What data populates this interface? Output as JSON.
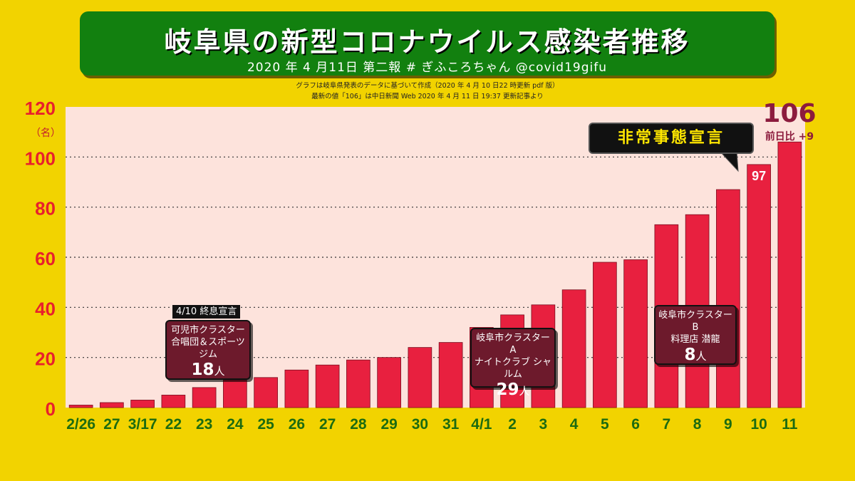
{
  "header": {
    "title": "岐阜県の新型コロナウイルス感染者推移",
    "subtitle": "2020 年 4 月11日  第二報   # ぎふころちゃん  @covid19gifu",
    "note1": "グラフは岐阜県発表のデータに基づいて作成（2020 年 4 月 10 日22 時更新 pdf 版）",
    "note2": "最新の値「106」は中日新聞 Web 2020 年 4 月 11 日 19:37 更新記事より"
  },
  "chart_data": {
    "type": "bar",
    "title": "岐阜県の新型コロナウイルス感染者推移",
    "xlabel": "",
    "ylabel": "（名）",
    "ylim": [
      0,
      120
    ],
    "yticks": [
      0,
      20,
      40,
      60,
      80,
      100,
      120
    ],
    "grid": true,
    "categories": [
      "2/26",
      "27",
      "3/17",
      "22",
      "23",
      "24",
      "25",
      "26",
      "27",
      "28",
      "29",
      "30",
      "31",
      "4/1",
      "2",
      "3",
      "4",
      "5",
      "6",
      "7",
      "8",
      "9",
      "10",
      "11"
    ],
    "values": [
      1,
      2,
      3,
      5,
      8,
      11,
      12,
      15,
      17,
      19,
      20,
      24,
      26,
      32,
      37,
      41,
      47,
      58,
      59,
      73,
      77,
      87,
      97,
      106
    ],
    "bar_color": "#e8203f",
    "data_labels": [
      {
        "category": "10",
        "text": "97"
      }
    ]
  },
  "annotations": {
    "latest_value": "106",
    "latest_delta": "前日比 +9",
    "emergency": "非常事態宣言",
    "cluster_kani": {
      "tag": "4/10 終息宣言",
      "line1": "可児市クラスター",
      "line2": "合唱団＆スポーツジム",
      "count": "18",
      "unit": "人"
    },
    "cluster_a": {
      "line1": "岐阜市クラスター A",
      "line2": "ナイトクラブ シャルム",
      "count": "29",
      "unit": "人"
    },
    "cluster_b": {
      "line1": "岐阜市クラスター B",
      "line2": "料理店 潜龍",
      "count": "8",
      "unit": "人"
    }
  }
}
